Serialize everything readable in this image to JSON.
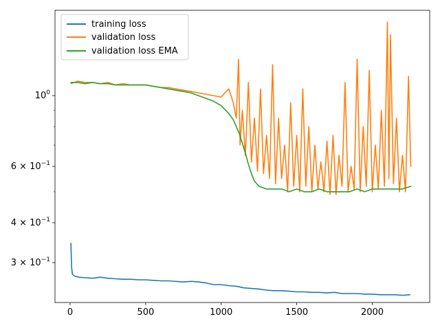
{
  "chart_data": {
    "type": "line",
    "title": "",
    "xlabel": "",
    "ylabel": "",
    "xlim": [
      -100,
      2380
    ],
    "ylim": [
      0.225,
      1.85
    ],
    "yscale": "log",
    "xticks": [
      0,
      500,
      1000,
      1500,
      2000
    ],
    "xtick_labels": [
      "0",
      "500",
      "1000",
      "1500",
      "2000"
    ],
    "yticks": [
      {
        "value": 1.0,
        "base": "10",
        "exp": "0"
      },
      {
        "value": 0.6,
        "base": "6 × 10",
        "exp": "−1"
      },
      {
        "value": 0.4,
        "base": "4 × 10",
        "exp": "−1"
      },
      {
        "value": 0.3,
        "base": "3 × 10",
        "exp": "−1"
      }
    ],
    "minor_yticks": [
      0.5,
      0.7,
      0.8,
      0.9
    ],
    "grid": false,
    "legend_position": "top-left",
    "series": [
      {
        "name": "training loss",
        "color": "#1f77b4",
        "x": [
          5,
          10,
          15,
          30,
          60,
          100,
          150,
          200,
          250,
          300,
          350,
          400,
          450,
          500,
          550,
          600,
          650,
          700,
          750,
          800,
          850,
          900,
          950,
          1000,
          1050,
          1100,
          1150,
          1200,
          1250,
          1300,
          1350,
          1400,
          1450,
          1500,
          1550,
          1600,
          1650,
          1700,
          1750,
          1800,
          1850,
          1900,
          1950,
          2000,
          2050,
          2100,
          2150,
          2200,
          2250
        ],
        "y": [
          0.345,
          0.29,
          0.276,
          0.272,
          0.27,
          0.269,
          0.268,
          0.27,
          0.268,
          0.267,
          0.266,
          0.266,
          0.265,
          0.265,
          0.264,
          0.263,
          0.263,
          0.262,
          0.261,
          0.262,
          0.261,
          0.259,
          0.256,
          0.256,
          0.254,
          0.253,
          0.25,
          0.249,
          0.248,
          0.246,
          0.245,
          0.245,
          0.244,
          0.243,
          0.243,
          0.242,
          0.242,
          0.241,
          0.242,
          0.24,
          0.24,
          0.24,
          0.239,
          0.239,
          0.238,
          0.238,
          0.238,
          0.237,
          0.238
        ]
      },
      {
        "name": "validation loss",
        "color": "#ff7f0e",
        "x": [
          5,
          50,
          100,
          150,
          200,
          250,
          300,
          350,
          400,
          450,
          500,
          550,
          600,
          650,
          700,
          750,
          800,
          850,
          900,
          950,
          1000,
          1050,
          1080,
          1100,
          1115,
          1125,
          1140,
          1160,
          1180,
          1200,
          1220,
          1240,
          1260,
          1280,
          1300,
          1320,
          1340,
          1360,
          1380,
          1400,
          1420,
          1440,
          1460,
          1480,
          1500,
          1520,
          1540,
          1560,
          1580,
          1600,
          1620,
          1640,
          1660,
          1680,
          1700,
          1720,
          1740,
          1760,
          1780,
          1800,
          1820,
          1840,
          1860,
          1880,
          1900,
          1920,
          1940,
          1960,
          1980,
          2000,
          2020,
          2040,
          2060,
          2080,
          2100,
          2110,
          2120,
          2140,
          2160,
          2180,
          2200,
          2220,
          2240,
          2255
        ],
        "y": [
          1.09,
          1.11,
          1.1,
          1.1,
          1.09,
          1.1,
          1.08,
          1.09,
          1.08,
          1.08,
          1.08,
          1.07,
          1.06,
          1.06,
          1.05,
          1.04,
          1.03,
          1.02,
          1.01,
          1.0,
          0.99,
          1.05,
          0.95,
          0.85,
          1.3,
          0.7,
          0.9,
          0.65,
          1.1,
          0.62,
          0.85,
          0.58,
          1.05,
          0.57,
          0.75,
          0.55,
          1.25,
          0.53,
          0.85,
          0.55,
          0.7,
          0.5,
          0.95,
          0.52,
          0.75,
          0.5,
          1.05,
          0.52,
          0.8,
          0.5,
          0.7,
          0.51,
          0.62,
          0.5,
          0.72,
          0.49,
          0.75,
          0.49,
          0.65,
          0.52,
          1.1,
          0.5,
          0.6,
          0.51,
          1.3,
          0.5,
          0.8,
          0.52,
          1.2,
          0.5,
          0.7,
          0.51,
          0.9,
          0.52,
          1.7,
          0.55,
          1.55,
          0.53,
          0.85,
          0.5,
          0.65,
          0.5,
          1.15,
          0.6
        ]
      },
      {
        "name": "validation loss EMA",
        "color": "#2ca02c",
        "x": [
          5,
          50,
          100,
          150,
          200,
          250,
          300,
          350,
          400,
          450,
          500,
          550,
          600,
          650,
          700,
          750,
          800,
          850,
          900,
          950,
          1000,
          1050,
          1080,
          1100,
          1120,
          1140,
          1160,
          1180,
          1200,
          1220,
          1250,
          1300,
          1350,
          1400,
          1450,
          1500,
          1550,
          1600,
          1650,
          1700,
          1750,
          1800,
          1850,
          1900,
          1950,
          2000,
          2050,
          2100,
          2150,
          2200,
          2255
        ],
        "y": [
          1.1,
          1.1,
          1.09,
          1.1,
          1.09,
          1.09,
          1.08,
          1.08,
          1.08,
          1.08,
          1.08,
          1.07,
          1.06,
          1.05,
          1.04,
          1.03,
          1.02,
          1.0,
          0.98,
          0.96,
          0.93,
          0.88,
          0.84,
          0.8,
          0.76,
          0.71,
          0.66,
          0.61,
          0.57,
          0.54,
          0.52,
          0.51,
          0.51,
          0.51,
          0.5,
          0.51,
          0.5,
          0.5,
          0.51,
          0.5,
          0.5,
          0.5,
          0.5,
          0.51,
          0.5,
          0.51,
          0.51,
          0.51,
          0.51,
          0.51,
          0.52
        ]
      }
    ]
  }
}
